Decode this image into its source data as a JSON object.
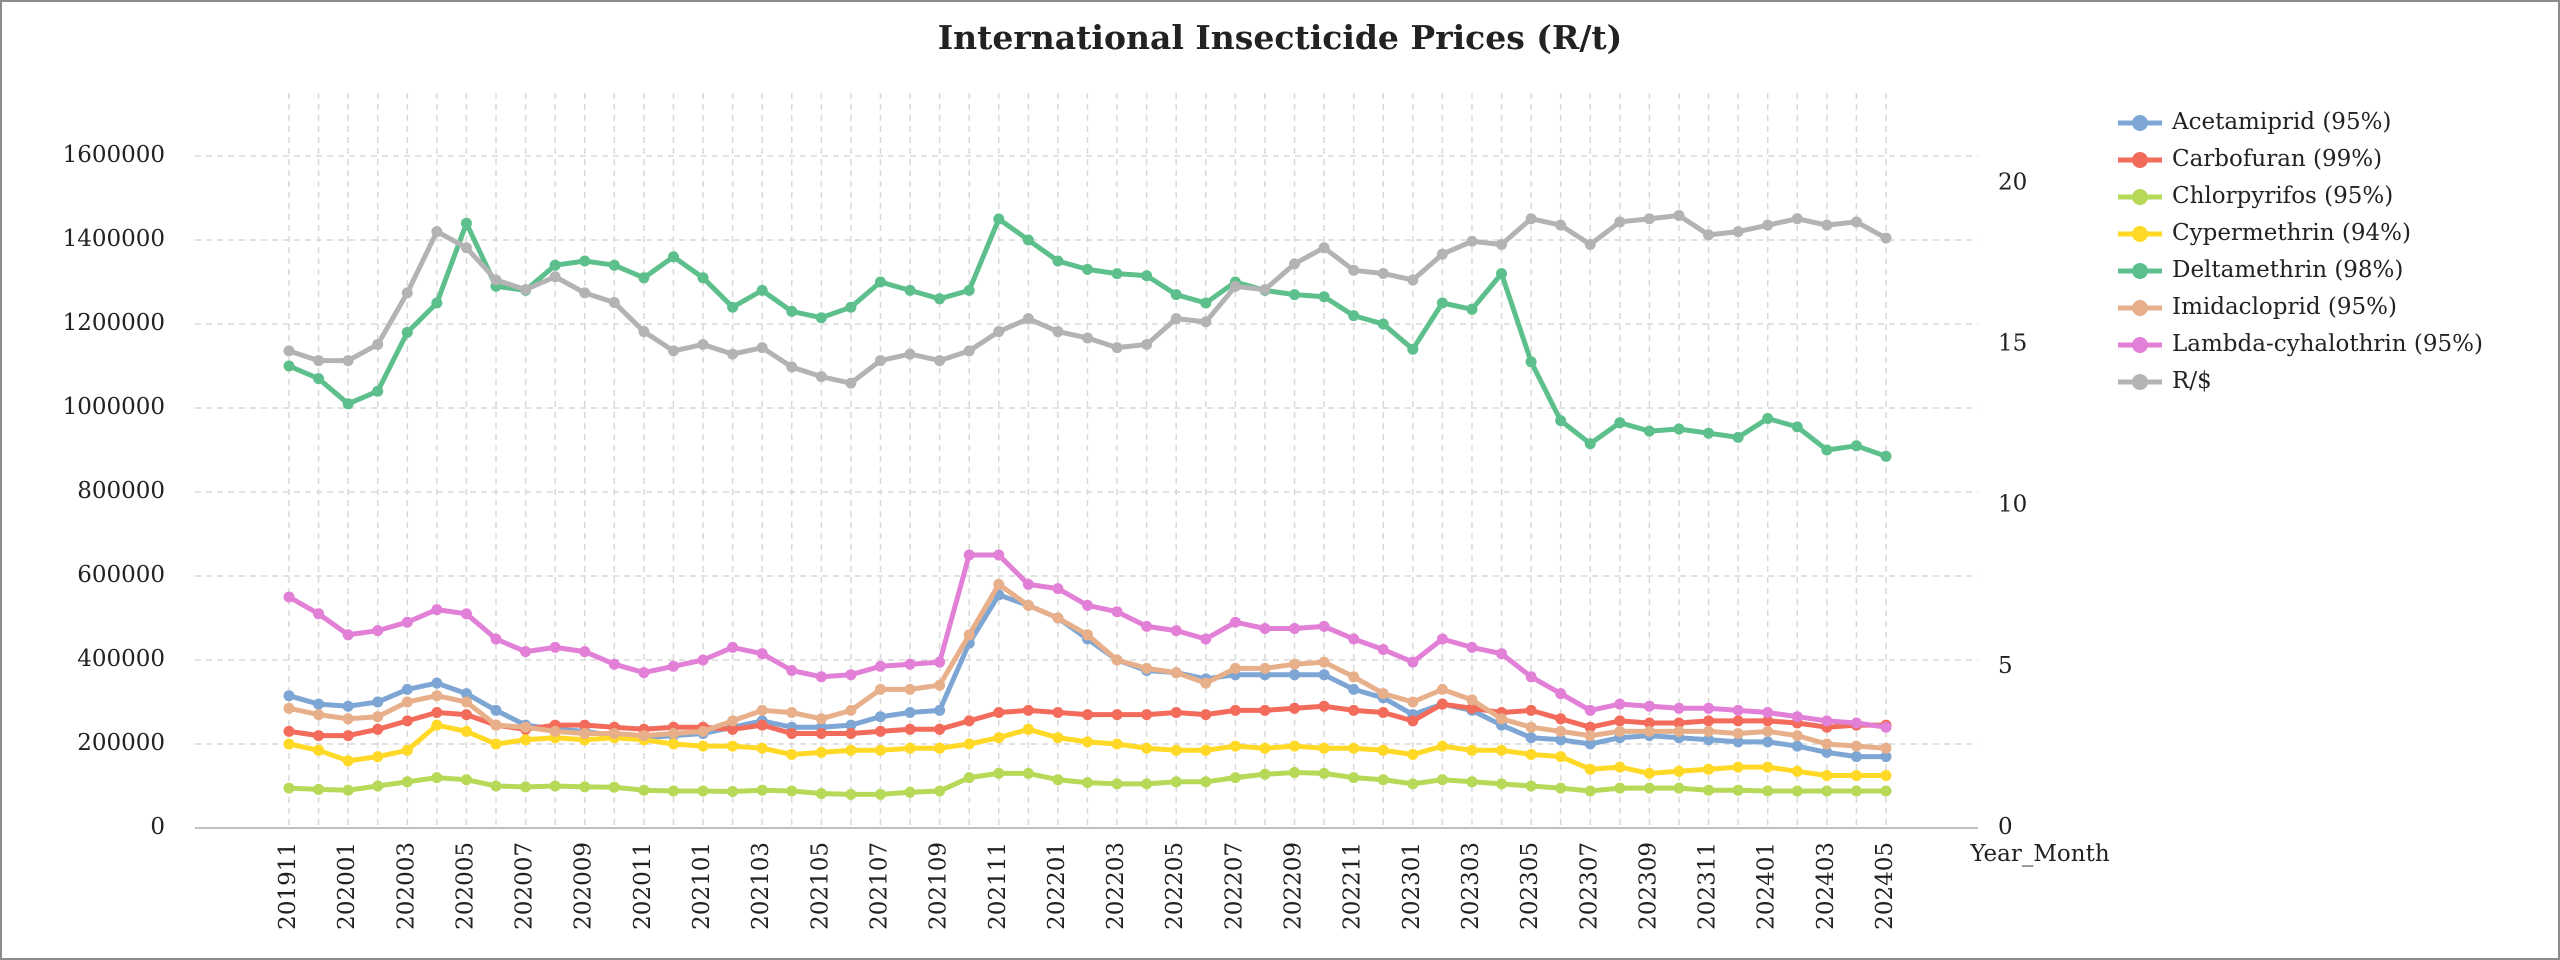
{
  "chart_data": {
    "type": "line",
    "title": "International Insecticide Prices (R/t)",
    "x_label": "Year_Month",
    "categories": [
      "201911",
      null,
      "202001",
      null,
      "202003",
      null,
      "202005",
      null,
      "202007",
      null,
      "202009",
      null,
      "202011",
      null,
      "202101",
      null,
      "202103",
      null,
      "202105",
      null,
      "202107",
      null,
      "202109",
      null,
      "202111",
      null,
      "202201",
      null,
      "202203",
      null,
      "202205",
      null,
      "202207",
      null,
      "202209",
      null,
      "202211",
      null,
      "202301",
      null,
      "202303",
      null,
      "202305",
      null,
      "202307",
      null,
      "202309",
      null,
      "202311",
      null,
      "202401",
      null,
      "202403",
      null,
      "202405"
    ],
    "ylim": [
      0,
      1750000
    ],
    "yticks": [
      0,
      200000,
      400000,
      600000,
      800000,
      1000000,
      1200000,
      1400000,
      1600000
    ],
    "y2lim": [
      0,
      22.8
    ],
    "y2ticks": [
      0,
      5,
      10,
      15,
      20
    ],
    "grid": true,
    "legend": "right",
    "series": [
      {
        "name": "Acetamiprid (95%)",
        "color": "#7ea6d4",
        "values": [
          315000,
          295000,
          290000,
          300000,
          330000,
          345000,
          320000,
          280000,
          245000,
          235000,
          230000,
          220000,
          215000,
          220000,
          225000,
          240000,
          255000,
          240000,
          240000,
          245000,
          265000,
          275000,
          280000,
          440000,
          555000,
          530000,
          500000,
          450000,
          400000,
          375000,
          370000,
          355000,
          365000,
          365000,
          365000,
          365000,
          330000,
          310000,
          270000,
          295000,
          280000,
          245000,
          215000,
          210000,
          200000,
          215000,
          220000,
          215000,
          210000,
          205000,
          205000,
          195000,
          180000,
          170000,
          170000
        ]
      },
      {
        "name": "Carbofuran (99%)",
        "color": "#f26b5b",
        "values": [
          230000,
          220000,
          220000,
          235000,
          255000,
          275000,
          270000,
          245000,
          235000,
          245000,
          245000,
          240000,
          235000,
          240000,
          240000,
          235000,
          245000,
          225000,
          225000,
          225000,
          230000,
          235000,
          235000,
          255000,
          275000,
          280000,
          275000,
          270000,
          270000,
          270000,
          275000,
          270000,
          280000,
          280000,
          285000,
          290000,
          280000,
          275000,
          255000,
          295000,
          285000,
          275000,
          280000,
          260000,
          240000,
          255000,
          250000,
          250000,
          255000,
          255000,
          255000,
          250000,
          240000,
          245000,
          245000
        ]
      },
      {
        "name": "Chlorpyrifos (95%)",
        "color": "#b6d957",
        "values": [
          95000,
          92000,
          90000,
          100000,
          110000,
          120000,
          115000,
          100000,
          98000,
          100000,
          98000,
          97000,
          90000,
          88000,
          88000,
          87000,
          90000,
          88000,
          82000,
          80000,
          80000,
          85000,
          88000,
          120000,
          130000,
          130000,
          115000,
          108000,
          105000,
          105000,
          110000,
          110000,
          120000,
          128000,
          132000,
          130000,
          120000,
          115000,
          105000,
          115000,
          110000,
          105000,
          100000,
          95000,
          88000,
          95000,
          95000,
          95000,
          90000,
          90000,
          88000,
          88000,
          88000,
          88000,
          88000
        ]
      },
      {
        "name": "Cypermethrin (94%)",
        "color": "#ffd926",
        "values": [
          200000,
          185000,
          160000,
          170000,
          185000,
          245000,
          230000,
          200000,
          210000,
          215000,
          210000,
          215000,
          210000,
          200000,
          195000,
          195000,
          190000,
          175000,
          180000,
          185000,
          185000,
          190000,
          190000,
          200000,
          215000,
          235000,
          215000,
          205000,
          200000,
          190000,
          185000,
          185000,
          195000,
          190000,
          195000,
          190000,
          190000,
          185000,
          175000,
          195000,
          185000,
          185000,
          175000,
          170000,
          140000,
          145000,
          130000,
          135000,
          140000,
          145000,
          145000,
          135000,
          125000,
          125000,
          125000
        ]
      },
      {
        "name": "Deltamethrin (98%)",
        "color": "#5cbf8c",
        "values": [
          1100000,
          1070000,
          1010000,
          1040000,
          1180000,
          1250000,
          1440000,
          1290000,
          1280000,
          1340000,
          1350000,
          1340000,
          1310000,
          1360000,
          1310000,
          1240000,
          1280000,
          1230000,
          1215000,
          1240000,
          1300000,
          1280000,
          1260000,
          1280000,
          1450000,
          1400000,
          1350000,
          1330000,
          1320000,
          1315000,
          1270000,
          1250000,
          1300000,
          1280000,
          1270000,
          1265000,
          1220000,
          1200000,
          1140000,
          1250000,
          1235000,
          1320000,
          1110000,
          970000,
          915000,
          965000,
          945000,
          950000,
          940000,
          930000,
          975000,
          955000,
          900000,
          910000,
          885000
        ]
      },
      {
        "name": "Imidacloprid (95%)",
        "color": "#e8b08a",
        "values": [
          285000,
          270000,
          260000,
          265000,
          300000,
          315000,
          300000,
          245000,
          240000,
          230000,
          225000,
          225000,
          220000,
          225000,
          230000,
          255000,
          280000,
          275000,
          260000,
          280000,
          330000,
          330000,
          340000,
          460000,
          580000,
          530000,
          500000,
          460000,
          400000,
          380000,
          370000,
          345000,
          380000,
          380000,
          390000,
          395000,
          360000,
          320000,
          300000,
          330000,
          305000,
          260000,
          240000,
          230000,
          220000,
          230000,
          230000,
          230000,
          230000,
          225000,
          230000,
          220000,
          200000,
          195000,
          190000
        ]
      },
      {
        "name": "Lambda-cyhalothrin (95%)",
        "color": "#e27fd6",
        "values": [
          550000,
          510000,
          460000,
          470000,
          490000,
          520000,
          510000,
          450000,
          420000,
          430000,
          420000,
          390000,
          370000,
          385000,
          400000,
          430000,
          415000,
          375000,
          360000,
          365000,
          385000,
          390000,
          395000,
          650000,
          650000,
          580000,
          570000,
          530000,
          515000,
          480000,
          470000,
          450000,
          490000,
          475000,
          475000,
          480000,
          450000,
          425000,
          395000,
          450000,
          430000,
          415000,
          360000,
          320000,
          280000,
          295000,
          290000,
          285000,
          285000,
          280000,
          275000,
          265000,
          255000,
          250000,
          240000
        ]
      },
      {
        "name": "R/$",
        "color": "#b3b3b3",
        "axis": "y2",
        "values": [
          14.8,
          14.5,
          14.5,
          15.0,
          16.6,
          18.5,
          18.0,
          17.0,
          16.7,
          17.1,
          16.6,
          16.3,
          15.4,
          14.8,
          15.0,
          14.7,
          14.9,
          14.3,
          14.0,
          13.8,
          14.5,
          14.7,
          14.5,
          14.8,
          15.4,
          15.8,
          15.4,
          15.2,
          14.9,
          15.0,
          15.8,
          15.7,
          16.8,
          16.7,
          17.5,
          18.0,
          17.3,
          17.2,
          17.0,
          17.8,
          18.2,
          18.1,
          18.9,
          18.7,
          18.1,
          18.8,
          18.9,
          19.0,
          18.4,
          18.5,
          18.7,
          18.9,
          18.7,
          18.8,
          18.3
        ]
      }
    ]
  }
}
